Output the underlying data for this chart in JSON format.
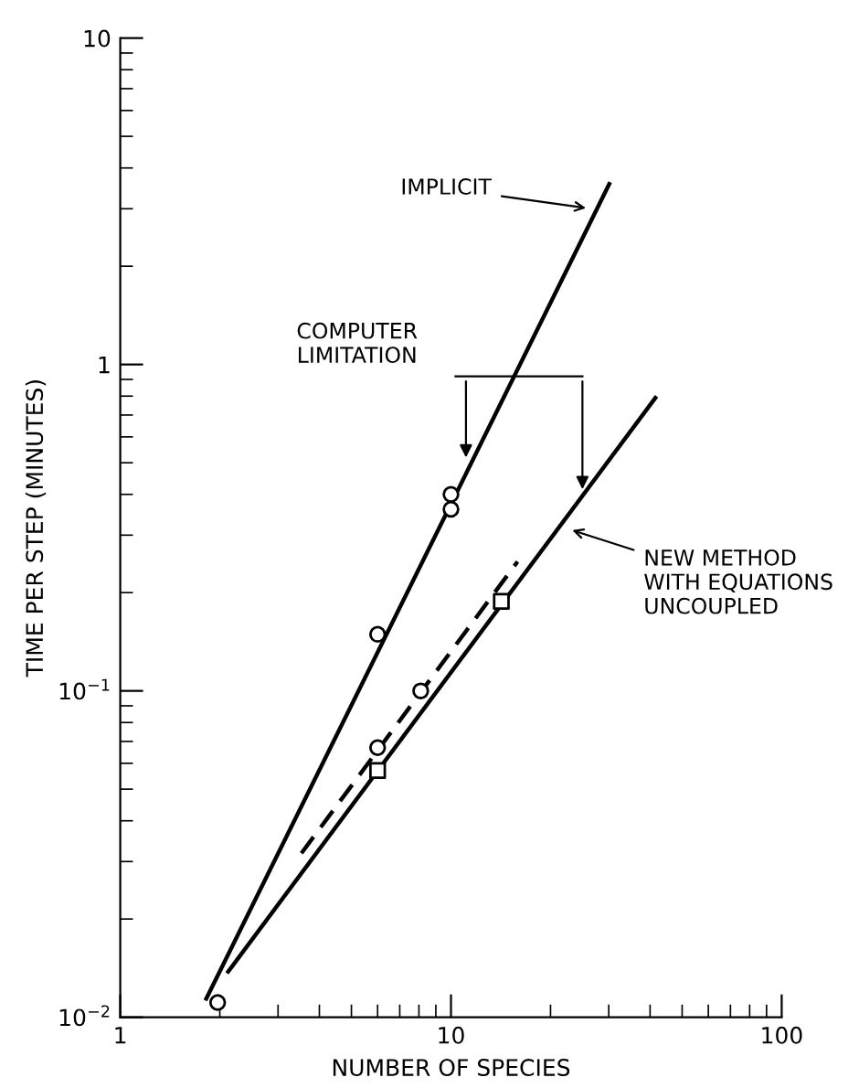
{
  "chart_data": {
    "type": "line",
    "xlabel": "NUMBER OF SPECIES",
    "ylabel": "TIME PER STEP (MINUTES)",
    "log": "xy",
    "grid": false,
    "xlim": [
      1,
      100
    ],
    "xticks": [
      1,
      10,
      100
    ],
    "ylim": [
      0.01,
      10
    ],
    "yticks": [
      {
        "value": 0.01,
        "label": "10$^{−2}$"
      },
      {
        "value": 0.1,
        "label": "10$^{−1}$"
      },
      1,
      10
    ],
    "series": [
      {
        "color": "#000000",
        "line_style": "solid",
        "marker": "none",
        "x": [
          1.82,
          30.1
        ],
        "values": [
          0.0114,
          3.57
        ]
      },
      {
        "color": "#000000",
        "line_style": "solid",
        "marker": "none",
        "x": [
          2.12,
          41.5
        ],
        "values": [
          0.0138,
          0.79
        ]
      },
      {
        "color": "#000000",
        "line_style": "dashed",
        "marker": "none",
        "x": [
          3.53,
          15.9
        ],
        "values": [
          0.0318,
          0.249
        ]
      },
      {
        "type": "scatter",
        "color": "#000000",
        "marker": "circle",
        "x": [
          1.97,
          6.0,
          10,
          10
        ],
        "values": [
          0.0111,
          0.149,
          0.4,
          0.36
        ]
      },
      {
        "type": "scatter",
        "color": "#000000",
        "marker": "circle",
        "x": [
          6.0,
          8.1
        ],
        "values": [
          0.067,
          0.1
        ]
      },
      {
        "type": "scatter",
        "color": "#000000",
        "marker": "square",
        "x": [
          6.0,
          14.2
        ],
        "values": [
          0.057,
          0.188
        ]
      }
    ],
    "annotations": [
      {
        "text": "IMPLICIT",
        "x": 26.5,
        "y": 3.0
      },
      "COMPUTER\nLIMITATION",
      {
        "text": "NEW METHOD\nWITH EQUATIONS\nUNCOUPLED",
        "x": 22.5,
        "y": 0.314
      }
    ]
  }
}
